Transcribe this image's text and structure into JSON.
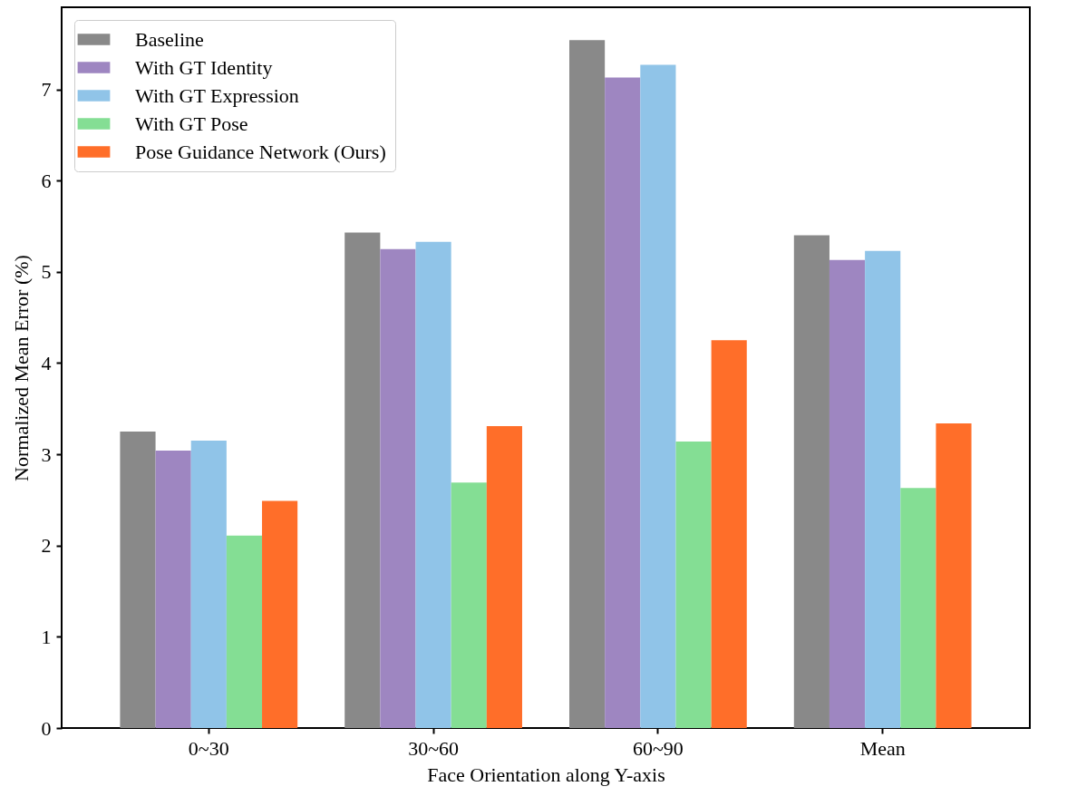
{
  "chart_data": {
    "type": "bar",
    "xlabel": "Face Orientation along Y-axis",
    "ylabel": "Normalized Mean Error (%)",
    "categories": [
      "0~30",
      "30~60",
      "60~90",
      "Mean"
    ],
    "series": [
      {
        "name": "Baseline",
        "color": "#898989",
        "values": [
          3.25,
          5.43,
          7.54,
          5.4
        ]
      },
      {
        "name": "With GT Identity",
        "color": "#9e86c1",
        "values": [
          3.04,
          5.25,
          7.13,
          5.13
        ]
      },
      {
        "name": "With GT Expression",
        "color": "#90c4e8",
        "values": [
          3.15,
          5.33,
          7.27,
          5.23
        ]
      },
      {
        "name": "With GT Pose",
        "color": "#84de94",
        "values": [
          2.11,
          2.69,
          3.14,
          2.63
        ]
      },
      {
        "name": "Pose Guidance Network (Ours)",
        "color": "#ff6e29",
        "values": [
          2.49,
          3.31,
          4.25,
          3.34
        ]
      }
    ],
    "ylim": [
      0,
      7.9
    ],
    "yticks": [
      0,
      1,
      2,
      3,
      4,
      5,
      6,
      7
    ],
    "legend": "top left"
  }
}
